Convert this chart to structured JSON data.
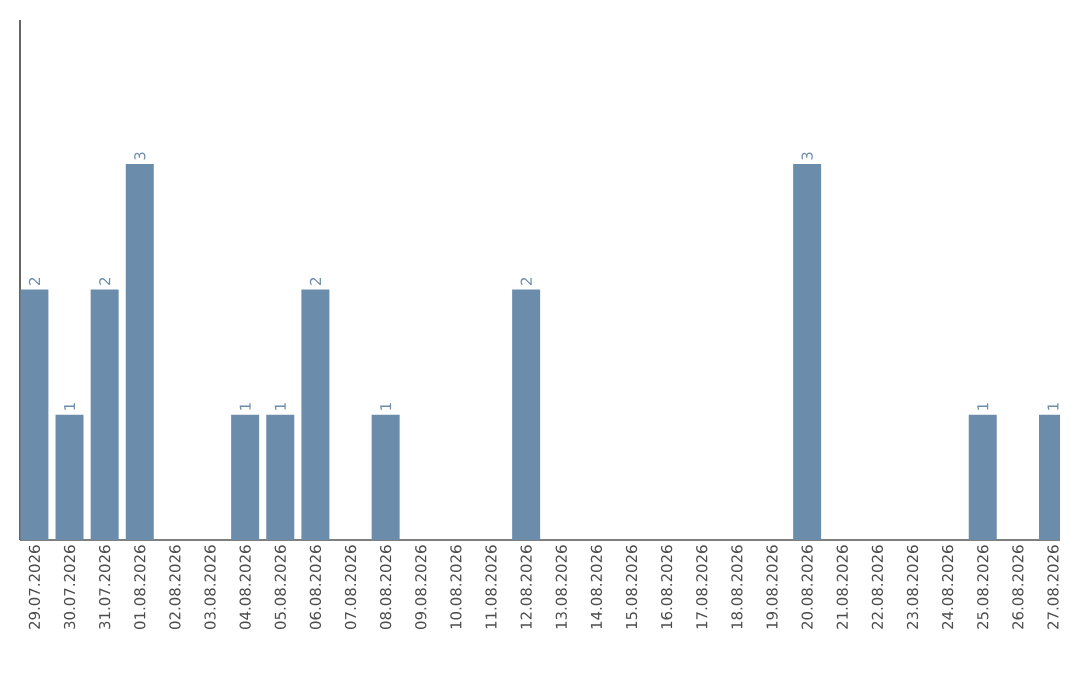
{
  "chart_data": {
    "type": "bar",
    "categories": [
      "29.07.2026",
      "30.07.2026",
      "31.07.2026",
      "01.08.2026",
      "02.08.2026",
      "03.08.2026",
      "04.08.2026",
      "05.08.2026",
      "06.08.2026",
      "07.08.2026",
      "08.08.2026",
      "09.08.2026",
      "10.08.2026",
      "11.08.2026",
      "12.08.2026",
      "13.08.2026",
      "14.08.2026",
      "15.08.2026",
      "16.08.2026",
      "17.08.2026",
      "18.08.2026",
      "19.08.2026",
      "20.08.2026",
      "21.08.2026",
      "22.08.2026",
      "23.08.2026",
      "24.08.2026",
      "25.08.2026",
      "26.08.2026",
      "27.08.2026"
    ],
    "values": [
      2,
      1,
      2,
      3,
      0,
      0,
      1,
      1,
      2,
      0,
      1,
      0,
      0,
      0,
      2,
      0,
      0,
      0,
      0,
      0,
      0,
      0,
      3,
      0,
      0,
      0,
      0,
      1,
      0,
      1
    ],
    "value_labels": [
      "2",
      "1",
      "2",
      "3",
      null,
      null,
      "1",
      "1",
      "2",
      null,
      "1",
      null,
      null,
      null,
      "2",
      null,
      null,
      null,
      null,
      null,
      null,
      null,
      "3",
      null,
      null,
      null,
      null,
      "1",
      null,
      "1"
    ],
    "color": "#6b8caa",
    "ylim": [
      0,
      4.15
    ]
  }
}
